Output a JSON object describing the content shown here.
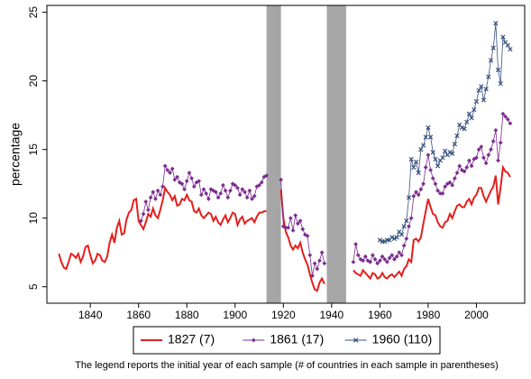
{
  "chart_data": {
    "type": "line",
    "y_label": "percentage",
    "note": "The legend reports the initial year of each sample (# of countries in each sample in parentheses)",
    "xlim": [
      1822,
      2020
    ],
    "ylim": [
      3.8,
      25.5
    ],
    "xticks": [
      1840,
      1860,
      1880,
      1900,
      1920,
      1940,
      1960,
      1980,
      2000
    ],
    "yticks": [
      5,
      10,
      15,
      20,
      25
    ],
    "grid": false,
    "legend_position": "bottom",
    "shaded_periods": [
      [
        1913,
        1919
      ],
      [
        1938,
        1946
      ]
    ],
    "shade_color": "#a6a6a6",
    "x": [
      1827,
      1828,
      1829,
      1830,
      1831,
      1832,
      1833,
      1834,
      1835,
      1836,
      1837,
      1838,
      1839,
      1840,
      1841,
      1842,
      1843,
      1844,
      1845,
      1846,
      1847,
      1848,
      1849,
      1850,
      1851,
      1852,
      1853,
      1854,
      1855,
      1856,
      1857,
      1858,
      1859,
      1860,
      1861,
      1862,
      1863,
      1864,
      1865,
      1866,
      1867,
      1868,
      1869,
      1870,
      1871,
      1872,
      1873,
      1874,
      1875,
      1876,
      1877,
      1878,
      1879,
      1880,
      1881,
      1882,
      1883,
      1884,
      1885,
      1886,
      1887,
      1888,
      1889,
      1890,
      1891,
      1892,
      1893,
      1894,
      1895,
      1896,
      1897,
      1898,
      1899,
      1900,
      1901,
      1902,
      1903,
      1904,
      1905,
      1906,
      1907,
      1908,
      1909,
      1910,
      1911,
      1912,
      1913,
      1916,
      1919,
      1920,
      1921,
      1922,
      1923,
      1924,
      1925,
      1926,
      1927,
      1928,
      1929,
      1930,
      1931,
      1932,
      1933,
      1934,
      1935,
      1936,
      1937,
      1942,
      1949,
      1950,
      1951,
      1952,
      1953,
      1954,
      1955,
      1956,
      1957,
      1958,
      1959,
      1960,
      1961,
      1962,
      1963,
      1964,
      1965,
      1966,
      1967,
      1968,
      1969,
      1970,
      1971,
      1972,
      1973,
      1974,
      1975,
      1976,
      1977,
      1978,
      1979,
      1980,
      1981,
      1982,
      1983,
      1984,
      1985,
      1986,
      1987,
      1988,
      1989,
      1990,
      1991,
      1992,
      1993,
      1994,
      1995,
      1996,
      1997,
      1998,
      1999,
      2000,
      2001,
      2002,
      2003,
      2004,
      2005,
      2006,
      2007,
      2008,
      2009,
      2010,
      2011,
      2012,
      2013,
      2014
    ],
    "series": [
      {
        "name": "1827 (7)",
        "color": "#e41f1c",
        "values": [
          7.4,
          6.8,
          6.4,
          6.3,
          6.8,
          7.4,
          7.3,
          7.1,
          7.4,
          6.8,
          7.2,
          7.9,
          8.0,
          7.3,
          6.7,
          6.9,
          7.4,
          7.3,
          6.9,
          6.8,
          7.2,
          8.2,
          8.8,
          8.2,
          9.3,
          9.8,
          8.8,
          8.9,
          9.9,
          10.4,
          10.6,
          11.3,
          11.4,
          9.8,
          9.5,
          9.2,
          9.7,
          10.3,
          10.1,
          10.7,
          10.2,
          10.0,
          10.6,
          11.3,
          12.2,
          11.9,
          11.7,
          11.3,
          11.6,
          10.9,
          11.0,
          11.4,
          11.3,
          11.7,
          11.3,
          11.2,
          10.5,
          10.4,
          10.7,
          10.2,
          10.0,
          10.2,
          10.4,
          10.3,
          9.8,
          10.1,
          9.7,
          9.5,
          9.9,
          10.2,
          9.7,
          10.0,
          10.4,
          10.3,
          9.5,
          9.9,
          10.1,
          9.6,
          9.8,
          9.9,
          10.0,
          9.7,
          10.1,
          10.4,
          10.4,
          10.5,
          10.5,
          null,
          12.1,
          10.0,
          9.0,
          8.6,
          8.0,
          7.7,
          8.0,
          7.8,
          8.2,
          7.5,
          7.0,
          6.6,
          5.9,
          5.3,
          4.8,
          4.7,
          5.3,
          5.6,
          5.2,
          null,
          6.2,
          6.0,
          5.9,
          5.8,
          6.2,
          6.0,
          5.8,
          5.6,
          6.0,
          5.9,
          5.6,
          5.7,
          6.0,
          5.7,
          5.6,
          5.8,
          5.9,
          5.7,
          5.9,
          6.1,
          5.8,
          6.3,
          6.5,
          7.0,
          6.8,
          8.4,
          8.5,
          8.3,
          8.6,
          9.6,
          10.5,
          11.4,
          10.8,
          10.3,
          10.2,
          9.7,
          9.4,
          9.3,
          9.7,
          9.8,
          10.3,
          10.0,
          10.5,
          10.9,
          11.0,
          10.8,
          10.8,
          11.2,
          11.4,
          11.0,
          11.5,
          11.7,
          12.2,
          12.2,
          11.6,
          11.2,
          11.6,
          12.0,
          12.3,
          13.1,
          11.0,
          12.2,
          13.7,
          13.4,
          13.3,
          13.0
        ]
      },
      {
        "name": "1861 (17)",
        "color": "#7b2d8e",
        "marker": "diamond",
        "values": [
          null,
          null,
          null,
          null,
          null,
          null,
          null,
          null,
          null,
          null,
          null,
          null,
          null,
          null,
          null,
          null,
          null,
          null,
          null,
          null,
          null,
          null,
          null,
          null,
          null,
          null,
          null,
          null,
          null,
          null,
          null,
          null,
          null,
          null,
          9.8,
          10.3,
          11.2,
          10.6,
          11.5,
          11.9,
          11.4,
          12.0,
          11.7,
          12.3,
          13.8,
          13.5,
          13.3,
          13.6,
          12.8,
          13.0,
          12.6,
          12.5,
          12.1,
          12.7,
          13.3,
          12.9,
          12.3,
          12.6,
          12.7,
          11.7,
          12.1,
          11.8,
          11.4,
          12.1,
          12.0,
          11.9,
          11.5,
          11.8,
          12.4,
          12.0,
          11.5,
          12.0,
          12.5,
          12.4,
          12.2,
          11.7,
          12.1,
          11.9,
          11.5,
          12.0,
          11.4,
          11.6,
          12.3,
          12.4,
          12.6,
          13.0,
          13.1,
          null,
          12.8,
          9.4,
          9.3,
          9.3,
          10.0,
          9.1,
          10.2,
          9.6,
          9.8,
          9.2,
          8.8,
          8.7,
          7.3,
          5.8,
          6.7,
          6.3,
          6.9,
          7.5,
          6.7,
          null,
          6.8,
          8.1,
          7.3,
          7.0,
          6.9,
          7.2,
          6.9,
          6.8,
          7.3,
          7.0,
          6.7,
          6.9,
          7.2,
          7.0,
          6.8,
          7.1,
          7.3,
          7.0,
          7.2,
          7.5,
          7.3,
          8.0,
          8.5,
          9.4,
          10.0,
          11.6,
          11.9,
          11.7,
          12.1,
          12.5,
          13.7,
          14.6,
          13.5,
          12.9,
          12.5,
          12.0,
          11.8,
          11.8,
          12.3,
          12.5,
          12.6,
          12.4,
          12.9,
          13.3,
          13.8,
          13.5,
          13.4,
          13.7,
          14.2,
          13.8,
          14.3,
          14.4,
          15.0,
          15.2,
          14.4,
          14.0,
          14.6,
          15.0,
          15.6,
          16.4,
          14.2,
          15.5,
          17.6,
          17.4,
          17.2,
          16.9
        ]
      },
      {
        "name": "1960 (110)",
        "color": "#36507e",
        "marker": "x",
        "values": [
          null,
          null,
          null,
          null,
          null,
          null,
          null,
          null,
          null,
          null,
          null,
          null,
          null,
          null,
          null,
          null,
          null,
          null,
          null,
          null,
          null,
          null,
          null,
          null,
          null,
          null,
          null,
          null,
          null,
          null,
          null,
          null,
          null,
          null,
          null,
          null,
          null,
          null,
          null,
          null,
          null,
          null,
          null,
          null,
          null,
          null,
          null,
          null,
          null,
          null,
          null,
          null,
          null,
          null,
          null,
          null,
          null,
          null,
          null,
          null,
          null,
          null,
          null,
          null,
          null,
          null,
          null,
          null,
          null,
          null,
          null,
          null,
          null,
          null,
          null,
          null,
          null,
          null,
          null,
          null,
          null,
          null,
          null,
          null,
          null,
          null,
          null,
          null,
          null,
          null,
          null,
          null,
          null,
          null,
          null,
          null,
          null,
          null,
          null,
          null,
          null,
          null,
          null,
          null,
          null,
          null,
          null,
          null,
          null,
          null,
          null,
          null,
          null,
          null,
          null,
          null,
          null,
          null,
          null,
          8.4,
          8.3,
          8.3,
          8.4,
          8.4,
          8.6,
          8.5,
          8.6,
          9.0,
          8.8,
          9.4,
          9.8,
          11.5,
          14.3,
          13.7,
          14.1,
          13.3,
          15.0,
          15.3,
          15.9,
          16.6,
          15.9,
          14.8,
          14.3,
          13.8,
          14.2,
          14.4,
          14.9,
          14.6,
          14.8,
          14.7,
          15.4,
          16.0,
          16.8,
          16.6,
          16.5,
          17.0,
          17.6,
          17.3,
          17.9,
          18.5,
          19.3,
          19.6,
          18.6,
          19.4,
          20.3,
          21.5,
          22.4,
          24.2,
          20.8,
          19.8,
          23.2,
          22.8,
          22.6,
          22.3
        ]
      }
    ]
  }
}
